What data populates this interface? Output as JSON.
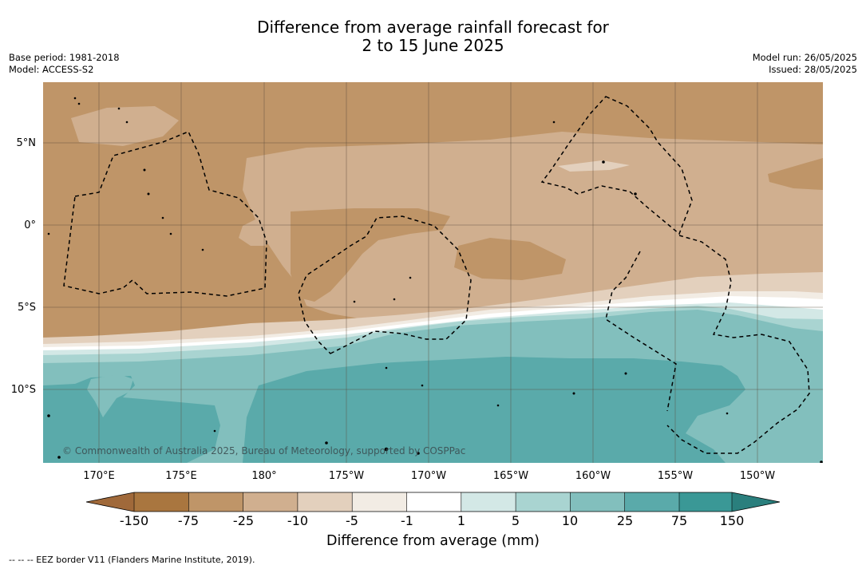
{
  "title": {
    "line1": "Difference from average rainfall forecast for",
    "line2": "2 to 15 June 2025"
  },
  "meta": {
    "base_period": "Base period: 1981-2018",
    "model": "Model: ACCESS-S2",
    "model_run": "Model run: 26/05/2025",
    "issued": "Issued: 28/05/2025"
  },
  "axes": {
    "lat_labels": [
      "5°N",
      "0°",
      "5°S",
      "10°S"
    ],
    "lon_labels": [
      "170°E",
      "175°E",
      "180°",
      "175°W",
      "170°W",
      "165°W",
      "160°W",
      "155°W",
      "150°W"
    ]
  },
  "credit": "© Commonwealth of Australia 2025, Bureau of Meteorology, supported by COSPPac",
  "colorbar": {
    "label": "Difference from average (mm)",
    "ticks": [
      "-150",
      "-75",
      "-25",
      "-10",
      "-5",
      "-1",
      "1",
      "5",
      "10",
      "25",
      "75",
      "150"
    ],
    "colors": {
      "below_min": "#a0693a",
      "c1": "#a9763f",
      "c2": "#bf9568",
      "c3": "#d0af8f",
      "c4": "#e3d0bd",
      "c5": "#f2ece4",
      "c6": "#ffffff",
      "c7": "#d3e8e6",
      "c8": "#a9d4d1",
      "c9": "#82bfbd",
      "c10": "#5aaaaa",
      "c11": "#3a9896",
      "above_max": "#2a7f7d"
    }
  },
  "footnote": "--  --  -- EEZ border V11 (Flanders Marine Institute, 2019)."
}
